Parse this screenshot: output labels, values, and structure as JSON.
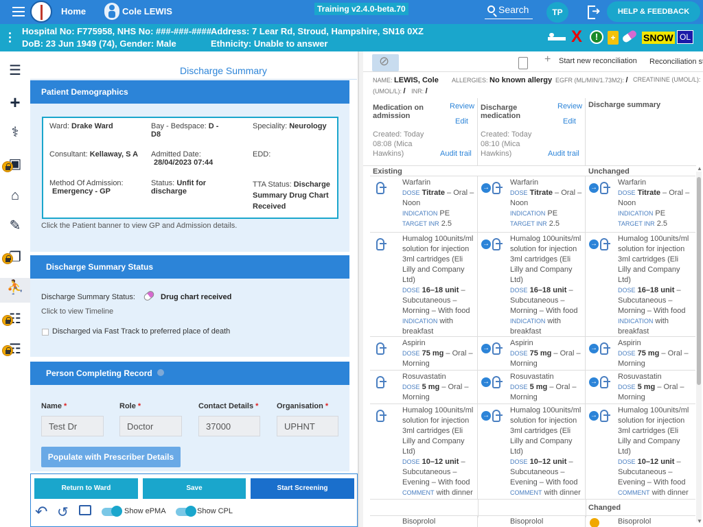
{
  "top": {
    "home": "Home",
    "patient_name": "Cole LEWIS",
    "training": "Training v2.4.0-beta.70",
    "search": "Search",
    "user_initials": "TP",
    "help": "HELP & FEEDBACK"
  },
  "banner": {
    "line1": "Hospital No: F775958, NHS No: ###-###-####",
    "line2": "DoB: 23 Jun 1949 (74), Gender: Male",
    "address": "Address: 7 Lear Rd, Stroud, Hampshire, SN16 0XZ",
    "ethnicity": "Ethnicity: Unable to answer",
    "snow": "SNOW",
    "ol": "OL",
    "excl": "!",
    "plus": "+",
    "cross": "X"
  },
  "left": {
    "title": "Discharge Summary",
    "demographics": {
      "header": "Patient Demographics",
      "ward_label": "Ward:",
      "ward": "Drake Ward",
      "bay_label": "Bay - Bedspace:",
      "bay": "D - D8",
      "speciality_label": "Speciality:",
      "speciality": "Neurology",
      "consultant_label": "Consultant:",
      "consultant": "Kellaway, S A",
      "admitted_label": "Admitted Date:",
      "admitted": "28/04/2023 07:44",
      "edd_label": "EDD:",
      "method_label": "Method Of Admission:",
      "method": "Emergency - GP",
      "status_label": "Status:",
      "status": "Unfit for discharge",
      "tta_label": "TTA Status:",
      "tta": "Discharge Summary Drug Chart Received",
      "hint": "Click the Patient banner to view GP and Admission details."
    },
    "status_card": {
      "header": "Discharge Summary Status",
      "label": "Discharge Summary Status:",
      "value": "Drug chart received",
      "timeline": "Click to view Timeline",
      "fast_track": "Discharged via Fast Track to preferred place of death"
    },
    "person": {
      "header": "Person Completing Record",
      "name_label": "Name",
      "role_label": "Role",
      "contact_label": "Contact Details",
      "org_label": "Organisation",
      "req": "*",
      "name": "Test Dr",
      "role": "Doctor",
      "contact": "37000",
      "org": "UPHNT",
      "populate": "Populate with Prescriber Details"
    },
    "buttons": {
      "return": "Return to Ward",
      "save": "Save",
      "screening": "Start Screening",
      "show_epma": "Show ePMA",
      "show_cpl": "Show CPL"
    }
  },
  "right": {
    "start_recon": "Start new reconciliation",
    "recon_status": "Reconciliation st",
    "name_label": "NAME:",
    "name": "LEWIS, Cole",
    "allergies_label": "ALLERGIES:",
    "allergies": "No known allergy",
    "egfr_label": "EGFR (ML/MIN/1.73M2):",
    "egfr": "/",
    "creat_label": "CREATININE (UMOL/L):",
    "creat": "/",
    "inr_label": "INR:",
    "inr": "/",
    "col1": {
      "title": "Medication on admission",
      "review": "Review",
      "edit": "Edit",
      "created": "Created: Today 08:08 (Mica Hawkins)",
      "audit": "Audit trail"
    },
    "col2": {
      "title": "Discharge medication",
      "review": "Review",
      "edit": "Edit",
      "created": "Created: Today 08:10 (Mica Hawkins)",
      "audit": "Audit trail"
    },
    "col3": {
      "title": "Discharge summary"
    },
    "group_existing": "Existing",
    "group_unchanged": "Unchanged",
    "group_changed": "Changed",
    "meds": [
      {
        "name": "Warfarin",
        "dose_k": "DOSE",
        "dose": "Titrate",
        "route": " – Oral – Noon",
        "ind_k": "INDICATION",
        "ind": "PE",
        "extra_k": "TARGET INR",
        "extra": "2.5"
      },
      {
        "name": "Humalog 100units/ml solution for injection 3ml cartridges (Eli Lilly and Company Ltd)",
        "dose_k": "DOSE",
        "dose": "16–18 unit",
        "route": " – Subcutaneous – Morning – With food",
        "ind_k": "INDICATION",
        "ind": "with breakfast"
      },
      {
        "name": "Aspirin",
        "dose_k": "DOSE",
        "dose": "75 mg",
        "route": " – Oral – Morning"
      },
      {
        "name": "Rosuvastatin",
        "dose_k": "DOSE",
        "dose": "5 mg",
        "route": " – Oral – Morning"
      },
      {
        "name": "Humalog 100units/ml solution for injection 3ml cartridges (Eli Lilly and Company Ltd)",
        "dose_k": "DOSE",
        "dose": "10–12 unit",
        "route": " – Subcutaneous – Evening – With food",
        "ind_k": "COMMENT",
        "ind": "with dinner"
      },
      {
        "name": "Bisoprolol"
      }
    ]
  }
}
